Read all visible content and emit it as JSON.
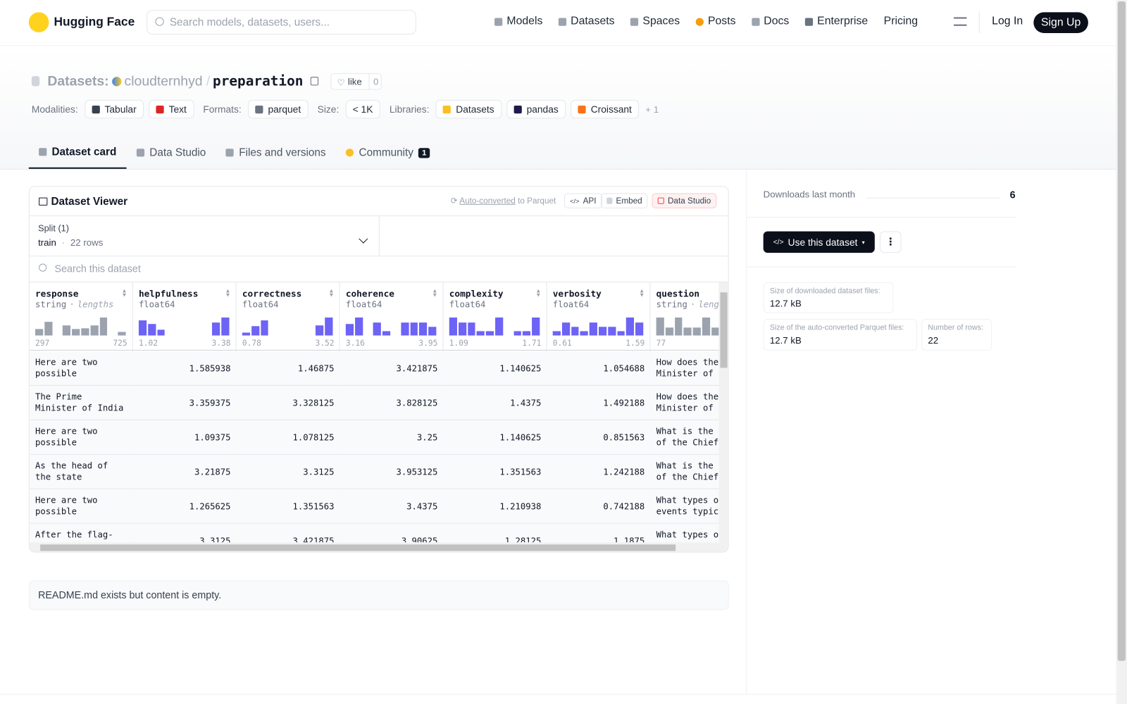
{
  "nav": {
    "brand": "Hugging Face",
    "search_placeholder": "Search models, datasets, users...",
    "links": [
      "Models",
      "Datasets",
      "Spaces",
      "Posts",
      "Docs",
      "Enterprise",
      "Pricing"
    ],
    "login": "Log In",
    "signup": "Sign Up"
  },
  "header": {
    "section": "Datasets:",
    "owner": "cloudternhyd",
    "separator": "/",
    "name": "preparation",
    "like_label": "like",
    "like_count": 0,
    "tag_groups": [
      {
        "label": "Modalities:",
        "tags": [
          "Tabular",
          "Text"
        ]
      },
      {
        "label": "Formats:",
        "tags": [
          "parquet"
        ]
      },
      {
        "label": "Size:",
        "tags": [
          "< 1K"
        ]
      },
      {
        "label": "Libraries:",
        "tags": [
          "Datasets",
          "pandas",
          "Croissant"
        ]
      }
    ],
    "more": "+ 1"
  },
  "tabs": [
    {
      "label": "Dataset card"
    },
    {
      "label": "Data Studio"
    },
    {
      "label": "Files and versions"
    },
    {
      "label": "Community",
      "badge": 1
    }
  ],
  "viewer": {
    "title": "Dataset Viewer",
    "auto_converted": "Auto-converted",
    "to_parquet": "to Parquet",
    "api": "API",
    "embed": "Embed",
    "studio": "Data Studio",
    "split_label": "Split (1)",
    "split": "train",
    "dot": "·",
    "rows_label": "22 rows",
    "search_placeholder": "Search this dataset",
    "columns": [
      {
        "name": "response",
        "dtype": "string",
        "extra": "lengths",
        "min": 297,
        "max": 725,
        "color": "#9ca3af",
        "histogram": [
          9,
          19,
          0,
          14,
          9,
          10,
          14,
          25,
          0,
          5
        ]
      },
      {
        "name": "helpfulness",
        "dtype": "float64",
        "min": 1.02,
        "max": 3.38,
        "color": "#6d63f5",
        "histogram": [
          21,
          16,
          8,
          0,
          0,
          0,
          0,
          0,
          18,
          25
        ]
      },
      {
        "name": "correctness",
        "dtype": "float64",
        "min": 0.78,
        "max": 3.52,
        "color": "#6d63f5",
        "histogram": [
          4,
          13,
          21,
          0,
          0,
          0,
          0,
          0,
          14,
          25
        ]
      },
      {
        "name": "coherence",
        "dtype": "float64",
        "min": 3.16,
        "max": 3.95,
        "color": "#6d63f5",
        "histogram": [
          16,
          25,
          0,
          18,
          6,
          0,
          18,
          18,
          18,
          12
        ]
      },
      {
        "name": "complexity",
        "dtype": "float64",
        "min": 1.09,
        "max": 1.71,
        "color": "#6d63f5",
        "histogram": [
          25,
          18,
          18,
          6,
          6,
          25,
          0,
          6,
          6,
          25
        ]
      },
      {
        "name": "verbosity",
        "dtype": "float64",
        "min": 0.61,
        "max": 1.59,
        "color": "#6d63f5",
        "histogram": [
          6,
          18,
          12,
          6,
          18,
          12,
          12,
          6,
          25,
          18
        ]
      },
      {
        "name": "question",
        "dtype": "string",
        "extra": "leng",
        "min": 77,
        "color": "#9ca3af",
        "histogram": [
          25,
          11,
          25,
          11,
          11,
          25,
          11
        ]
      }
    ],
    "rows": [
      [
        "Here are two possible response…",
        1.585938,
        1.46875,
        3.421875,
        1.140625,
        1.054688,
        "How does the Minister of I"
      ],
      [
        "The Prime Minister of India plays a…",
        3.359375,
        3.328125,
        3.828125,
        1.4375,
        1.492188,
        "How does the Minister of I"
      ],
      [
        "Here are two possible response…",
        1.09375,
        1.078125,
        3.25,
        1.140625,
        0.851563,
        "What is the r of the Chief"
      ],
      [
        "As the head of the state government,…",
        3.21875,
        3.3125,
        3.953125,
        1.351563,
        1.242188,
        "What is the r of the Chief"
      ],
      [
        "Here are two possible response…",
        1.265625,
        1.351563,
        3.4375,
        1.210938,
        0.742188,
        "What types of events typica"
      ],
      [
        "After the flag-",
        3.3125,
        3.421875,
        3.90625,
        1.28125,
        1.1875,
        "What types of"
      ]
    ]
  },
  "readme": "README.md exists but content is empty.",
  "sidebar": {
    "downloads_label": "Downloads last month",
    "downloads": 6,
    "use_button": "Use this dataset",
    "stats": [
      {
        "label": "Size of downloaded dataset files:",
        "value": "12.7 kB"
      },
      {
        "label": "Size of the auto-converted Parquet files:",
        "value": "12.7 kB"
      },
      {
        "label": "Number of rows:",
        "value": "22"
      }
    ]
  }
}
